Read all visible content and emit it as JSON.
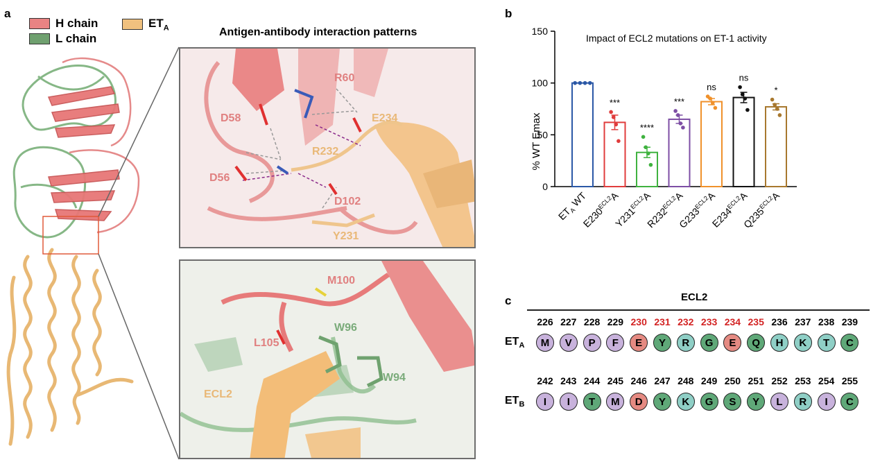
{
  "panel_a": {
    "letter": "a",
    "legend": [
      {
        "label": "H chain",
        "color": "#e98383"
      },
      {
        "label": "L chain",
        "color": "#6fa06f"
      },
      {
        "label": "ET",
        "sub": "A",
        "color": "#f0c17f"
      }
    ],
    "title": "Antigen-antibody interaction patterns",
    "top_labels": [
      "R60",
      "D58",
      "E234",
      "R232",
      "D56",
      "D102",
      "Y231"
    ],
    "bottom_labels": [
      "M100",
      "L105",
      "W96",
      "W94",
      "ECL2"
    ]
  },
  "panel_b": {
    "letter": "b"
  },
  "chart_data": {
    "type": "bar",
    "title": "Impact of ECL2 mutations on ET-1 activity",
    "ylabel": "% WT Emax",
    "ylim": [
      0,
      150
    ],
    "yticks": [
      "0",
      "50",
      "100",
      "150"
    ],
    "categories": [
      {
        "main": "ET",
        "sub": "A",
        "tail": " WT"
      },
      {
        "main": "E230",
        "sup": "ECL2",
        "tail": "A"
      },
      {
        "main": "Y231",
        "sup": "ECL2",
        "tail": "A"
      },
      {
        "main": "R232",
        "sup": "ECL2",
        "tail": "A"
      },
      {
        "main": "G233",
        "sup": "ECL2",
        "tail": "A"
      },
      {
        "main": "E234",
        "sup": "ECL2",
        "tail": "A"
      },
      {
        "main": "Q235",
        "sup": "ECL2",
        "tail": "A"
      }
    ],
    "values": [
      100,
      62,
      33,
      65,
      82,
      86,
      77
    ],
    "errors": [
      0,
      7,
      5,
      4,
      3,
      5,
      3
    ],
    "points": [
      [
        100,
        100,
        100,
        100
      ],
      [
        72,
        67,
        60,
        44
      ],
      [
        48,
        38,
        32,
        21
      ],
      [
        73,
        69,
        61,
        57
      ],
      [
        87,
        85,
        81,
        76
      ],
      [
        96,
        89,
        85,
        74
      ],
      [
        84,
        79,
        75,
        69
      ]
    ],
    "significance": [
      "",
      "***",
      "****",
      "***",
      "ns",
      "ns",
      "*"
    ],
    "colors": [
      "#2b58a6",
      "#e03c3c",
      "#3fb23f",
      "#7d4ea4",
      "#f0912b",
      "#111111",
      "#a8782e"
    ]
  },
  "panel_c": {
    "letter": "c",
    "header": "ECL2",
    "rows": [
      {
        "label": "ET",
        "sub": "A",
        "numbers": [
          "226",
          "227",
          "228",
          "229",
          "230",
          "231",
          "232",
          "233",
          "234",
          "235",
          "236",
          "237",
          "238",
          "239"
        ],
        "residues": [
          "M",
          "V",
          "P",
          "F",
          "E",
          "Y",
          "R",
          "G",
          "E",
          "Q",
          "H",
          "K",
          "T",
          "C"
        ],
        "types": [
          "p",
          "p",
          "p",
          "p",
          "r",
          "g",
          "c",
          "g",
          "r",
          "g",
          "c",
          "c",
          "c",
          "g"
        ],
        "highlight": [
          false,
          false,
          false,
          false,
          true,
          true,
          true,
          true,
          true,
          true,
          false,
          false,
          false,
          false
        ]
      },
      {
        "label": "ET",
        "sub": "B",
        "numbers": [
          "242",
          "243",
          "244",
          "245",
          "246",
          "247",
          "248",
          "249",
          "250",
          "251",
          "252",
          "253",
          "254",
          "255"
        ],
        "residues": [
          "I",
          "I",
          "T",
          "M",
          "D",
          "Y",
          "K",
          "G",
          "S",
          "Y",
          "L",
          "R",
          "I",
          "C"
        ],
        "types": [
          "p",
          "p",
          "g",
          "p",
          "r",
          "g",
          "c",
          "g",
          "g",
          "g",
          "p",
          "c",
          "p",
          "g"
        ],
        "highlight": [
          false,
          false,
          false,
          false,
          false,
          false,
          false,
          false,
          false,
          false,
          false,
          false,
          false,
          false
        ]
      }
    ],
    "type_colors": {
      "p": "#c8b2dc",
      "r": "#e58a82",
      "g": "#5fa878",
      "c": "#8fcfc6"
    },
    "highlight_color": "#d32323"
  }
}
